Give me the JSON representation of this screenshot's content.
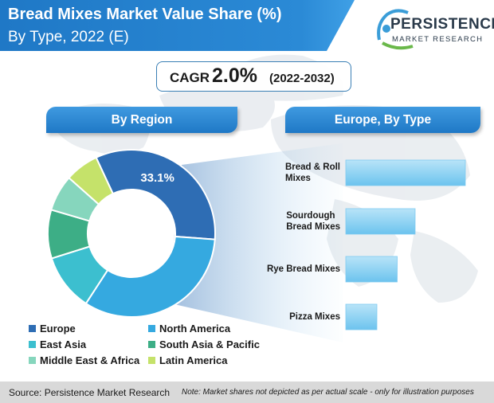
{
  "title": {
    "line1": "Bread Mixes Market Value Share (%)",
    "line2": "By Type, 2022 (E)"
  },
  "logo": {
    "word1": "PERSISTENCE",
    "word2": "MARKET RESEARCH"
  },
  "cagr": {
    "label": "CAGR",
    "value": "2.0%",
    "period": "(2022-2032)"
  },
  "headers": {
    "region": "By Region",
    "europe": "Europe, By Type"
  },
  "colors": {
    "banner": "#1f78c6",
    "header": "#2b86d3",
    "europe": "#2e6db4",
    "north_america": "#35a9e0",
    "east_asia": "#3cbfcf",
    "south_asia_pacific": "#3dae86",
    "middle_east_africa": "#86d6bd",
    "latin_america": "#c5e26a",
    "bar": "#8fd3f2"
  },
  "chart_data": [
    {
      "type": "pie",
      "title": "By Region",
      "slices": [
        {
          "name": "Europe",
          "value": 33.1,
          "label": "33.1%"
        },
        {
          "name": "North America",
          "value": 33.0
        },
        {
          "name": "East Asia",
          "value": 11.0
        },
        {
          "name": "South Asia & Pacific",
          "value": 9.4
        },
        {
          "name": "Middle East & Africa",
          "value": 7.0
        },
        {
          "name": "Latin America",
          "value": 6.5
        }
      ],
      "legend": [
        "Europe",
        "North America",
        "East Asia",
        "South Asia & Pacific",
        "Middle East & Africa",
        "Latin America"
      ]
    },
    {
      "type": "bar",
      "title": "Europe, By Type",
      "orientation": "horizontal",
      "categories": [
        "Bread & Roll Mixes",
        "Sourdough Bread Mixes",
        "Rye Bread Mixes",
        "Pizza Mixes"
      ],
      "category_lines": [
        [
          "Bread & Roll",
          "Mixes"
        ],
        [
          "Sourdough",
          "Bread Mixes"
        ],
        [
          "Rye Bread Mixes"
        ],
        [
          "Pizza Mixes"
        ]
      ],
      "values": [
        100,
        58,
        43,
        26
      ]
    }
  ],
  "footer": {
    "source": "Source: Persistence Market Research",
    "note": "Note: Market shares not depicted as per actual scale - only for illustration purposes"
  }
}
